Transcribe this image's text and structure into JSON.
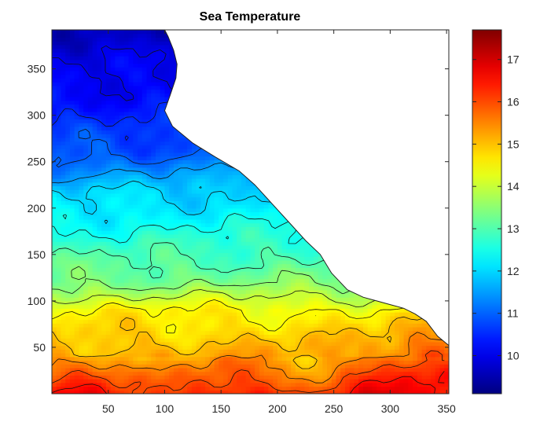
{
  "chart_data": {
    "type": "heatmap",
    "title": "Sea Temperature",
    "xlabel": "",
    "ylabel": "",
    "xlim": [
      0,
      352
    ],
    "ylim": [
      0,
      392
    ],
    "x_ticks": [
      50,
      100,
      150,
      200,
      250,
      300,
      350
    ],
    "y_ticks": [
      50,
      100,
      150,
      200,
      250,
      300,
      350
    ],
    "colorbar": {
      "colormap": "jet",
      "range": [
        9.1,
        17.7
      ],
      "ticks": [
        10,
        11,
        12,
        13,
        14,
        15,
        16,
        17
      ]
    },
    "land_mask_coastline": [
      [
        100,
        392
      ],
      [
        103,
        385
      ],
      [
        108,
        370
      ],
      [
        111,
        355
      ],
      [
        110,
        340
      ],
      [
        105,
        322
      ],
      [
        100,
        305
      ],
      [
        107,
        288
      ],
      [
        125,
        270
      ],
      [
        145,
        255
      ],
      [
        166,
        240
      ],
      [
        180,
        225
      ],
      [
        195,
        205
      ],
      [
        210,
        185
      ],
      [
        225,
        165
      ],
      [
        238,
        150
      ],
      [
        248,
        130
      ],
      [
        262,
        112
      ],
      [
        276,
        104
      ],
      [
        288,
        100
      ],
      [
        300,
        96
      ],
      [
        312,
        92
      ],
      [
        322,
        86
      ],
      [
        332,
        78
      ],
      [
        342,
        62
      ],
      [
        352,
        52
      ]
    ],
    "temperature_profile": [
      {
        "y": 0,
        "temp": 16.3
      },
      {
        "y": 40,
        "temp": 15.2
      },
      {
        "y": 90,
        "temp": 14.5
      },
      {
        "y": 120,
        "temp": 13.4
      },
      {
        "y": 170,
        "temp": 12.6
      },
      {
        "y": 220,
        "temp": 11.9
      },
      {
        "y": 260,
        "temp": 10.9
      },
      {
        "y": 300,
        "temp": 10.4
      },
      {
        "y": 350,
        "temp": 10.0
      },
      {
        "y": 392,
        "temp": 9.7
      }
    ],
    "contour_levels": [
      10,
      10.5,
      11,
      11.5,
      12,
      12.5,
      13,
      13.5,
      14,
      14.5,
      15,
      15.5,
      16,
      16.5,
      17
    ],
    "grid": false,
    "legend": "colorbar-right"
  }
}
